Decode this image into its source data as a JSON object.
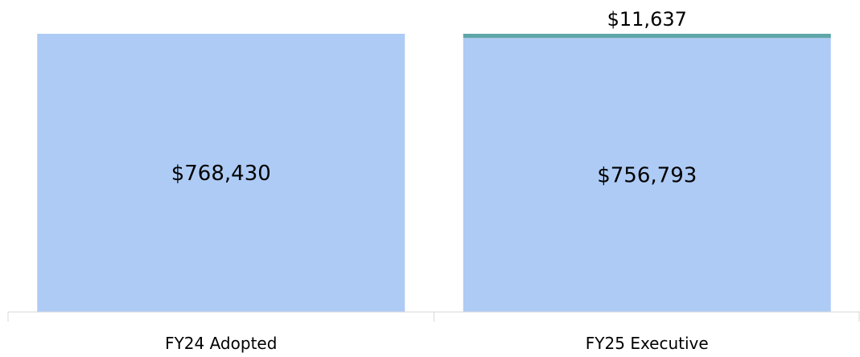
{
  "chart_data": {
    "type": "bar",
    "stacked": true,
    "categories": [
      "FY24 Adopted",
      "FY25 Executive"
    ],
    "series": [
      {
        "values": [
          768430,
          756793
        ],
        "labels": [
          "$768,430",
          "$756,793"
        ],
        "color": "#aecbf5"
      },
      {
        "values": [
          0,
          11637
        ],
        "labels": [
          "",
          "$11,637"
        ],
        "color": "#5fa6a8"
      }
    ],
    "ylim": [
      0,
      768430
    ],
    "grid": false,
    "legend": "none"
  }
}
